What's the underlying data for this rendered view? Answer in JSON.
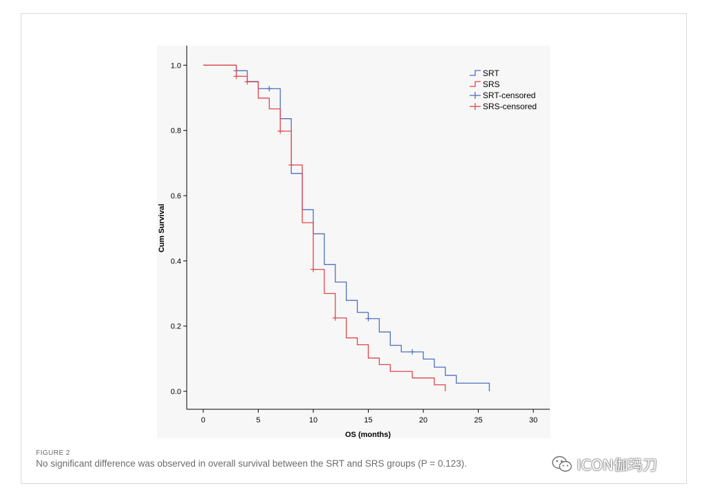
{
  "figure": {
    "label": "FIGURE 2",
    "caption": "No significant difference was observed in overall survival between the SRT and SRS groups (P = 0.123)."
  },
  "watermark": {
    "text": "ICON伽玛刀",
    "icon": "wechat-icon"
  },
  "chart_data": {
    "type": "line",
    "subtype": "kaplan-meier-step",
    "xlabel": "OS (months)",
    "ylabel": "Cum Survival",
    "xlim": [
      -1.5,
      31.5
    ],
    "ylim": [
      -0.055,
      1.06
    ],
    "xticks": [
      0,
      5,
      10,
      15,
      20,
      25,
      30
    ],
    "yticks": [
      0.0,
      0.2,
      0.4,
      0.6,
      0.8,
      1.0
    ],
    "ytick_labels": [
      "0.0",
      "0.2",
      "0.4",
      "0.6",
      "0.8",
      "1.0"
    ],
    "grid": false,
    "legend": {
      "placement": "top-right",
      "entries": [
        "SRT",
        "SRS",
        "SRT-censored",
        "SRS-censored"
      ]
    },
    "series": [
      {
        "name": "SRT",
        "color": "#4a6fc0",
        "x": [
          0,
          3,
          4,
          5,
          7,
          8,
          9,
          10,
          11,
          12,
          13,
          14,
          15,
          16,
          17,
          18,
          20,
          21,
          22,
          23,
          26
        ],
        "y": [
          1.0,
          0.983,
          0.95,
          0.928,
          0.836,
          0.668,
          0.557,
          0.483,
          0.389,
          0.335,
          0.279,
          0.242,
          0.223,
          0.182,
          0.141,
          0.121,
          0.099,
          0.074,
          0.049,
          0.025,
          0.0
        ],
        "censored": [
          [
            3,
            0.983
          ],
          [
            6,
            0.928
          ],
          [
            15,
            0.223
          ],
          [
            19,
            0.121
          ]
        ]
      },
      {
        "name": "SRS",
        "color": "#e0454a",
        "x": [
          0,
          3,
          4,
          5,
          6,
          7,
          8,
          9,
          10,
          11,
          12,
          13,
          14,
          15,
          16,
          17,
          19,
          21,
          22
        ],
        "y": [
          1.0,
          0.966,
          0.949,
          0.899,
          0.866,
          0.798,
          0.694,
          0.517,
          0.374,
          0.3,
          0.225,
          0.164,
          0.143,
          0.102,
          0.082,
          0.061,
          0.041,
          0.02,
          0.0
        ],
        "censored": [
          [
            3,
            0.966
          ],
          [
            4,
            0.949
          ],
          [
            7,
            0.798
          ],
          [
            8,
            0.694
          ],
          [
            10,
            0.374
          ],
          [
            12,
            0.225
          ]
        ]
      }
    ]
  }
}
